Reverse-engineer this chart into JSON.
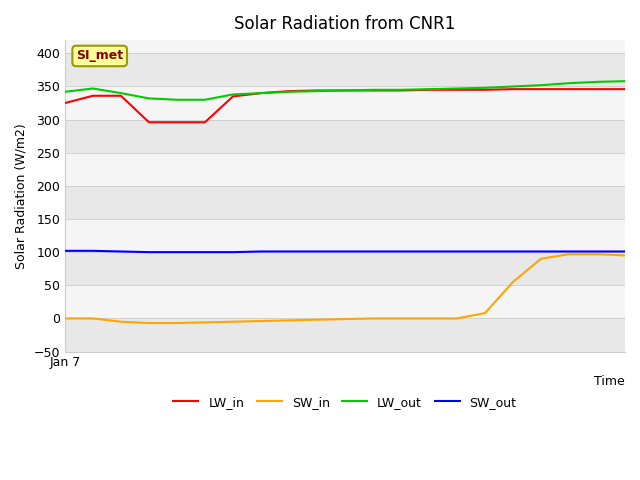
{
  "title": "Solar Radiation from CNR1",
  "xlabel": "Time",
  "ylabel": "Solar Radiation (W/m2)",
  "annotation": "SI_met",
  "ylim": [
    -50,
    420
  ],
  "yticks": [
    -50,
    0,
    50,
    100,
    150,
    200,
    250,
    300,
    350,
    400
  ],
  "x_start_label": "Jan 7",
  "bg_light": "#f5f5f5",
  "bg_dark": "#e8e8e8",
  "series": {
    "LW_in": {
      "color": "#ff0000",
      "x": [
        0,
        1,
        2,
        3,
        4,
        5,
        6,
        7,
        8,
        9,
        10,
        11,
        12,
        13,
        14,
        15,
        16,
        17,
        18,
        19,
        20
      ],
      "y": [
        325,
        336,
        336,
        296,
        296,
        296,
        335,
        340,
        343,
        344,
        344,
        344,
        344,
        345,
        345,
        345,
        346,
        346,
        346,
        346,
        346
      ]
    },
    "SW_in": {
      "color": "#ffa500",
      "x": [
        0,
        1,
        2,
        3,
        4,
        5,
        6,
        7,
        8,
        9,
        10,
        11,
        12,
        13,
        14,
        15,
        16,
        17,
        18,
        19,
        20
      ],
      "y": [
        0,
        0,
        -5,
        -7,
        -7,
        -6,
        -5,
        -4,
        -3,
        -2,
        -1,
        0,
        0,
        0,
        0,
        8,
        55,
        90,
        97,
        97,
        95
      ]
    },
    "LW_out": {
      "color": "#00cc00",
      "x": [
        0,
        1,
        2,
        3,
        4,
        5,
        6,
        7,
        8,
        9,
        10,
        11,
        12,
        13,
        14,
        15,
        16,
        17,
        18,
        19,
        20
      ],
      "y": [
        342,
        347,
        340,
        332,
        330,
        330,
        338,
        340,
        342,
        343,
        344,
        345,
        345,
        346,
        347,
        348,
        350,
        352,
        355,
        357,
        358
      ]
    },
    "SW_out": {
      "color": "#0000ff",
      "x": [
        0,
        1,
        2,
        3,
        4,
        5,
        6,
        7,
        8,
        9,
        10,
        11,
        12,
        13,
        14,
        15,
        16,
        17,
        18,
        19,
        20
      ],
      "y": [
        102,
        102,
        101,
        100,
        100,
        100,
        100,
        101,
        101,
        101,
        101,
        101,
        101,
        101,
        101,
        101,
        101,
        101,
        101,
        101,
        101
      ]
    }
  },
  "legend_entries": [
    "LW_in",
    "SW_in",
    "LW_out",
    "SW_out"
  ],
  "legend_colors": [
    "#ff0000",
    "#ffa500",
    "#00cc00",
    "#0000ff"
  ],
  "annotation_bg": "#ffff99",
  "annotation_border": "#999900",
  "annotation_text_color": "#880000",
  "figsize": [
    6.4,
    4.8
  ],
  "dpi": 100
}
